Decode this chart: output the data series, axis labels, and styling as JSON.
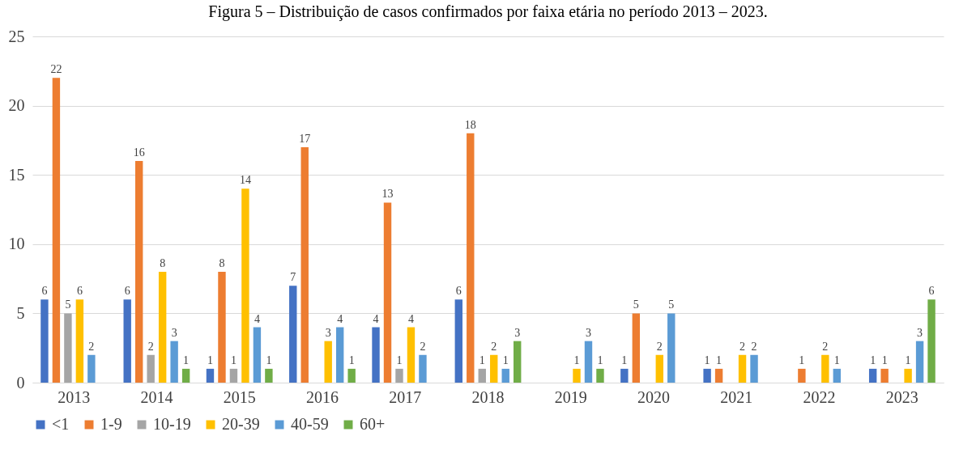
{
  "chart_data": {
    "type": "bar",
    "title": "Figura 5 – Distribuição de casos confirmados por faixa etária no período 2013 – 2023.",
    "categories": [
      "2013",
      "2014",
      "2015",
      "2016",
      "2017",
      "2018",
      "2019",
      "2020",
      "2021",
      "2022",
      "2023"
    ],
    "series": [
      {
        "name": "<1",
        "color": "#4472c4",
        "values": [
          6,
          6,
          1,
          7,
          4,
          6,
          null,
          1,
          1,
          null,
          1
        ]
      },
      {
        "name": "1-9",
        "color": "#ed7d31",
        "values": [
          22,
          16,
          8,
          17,
          13,
          18,
          null,
          5,
          1,
          1,
          1
        ]
      },
      {
        "name": "10-19",
        "color": "#a5a5a5",
        "values": [
          5,
          2,
          1,
          null,
          1,
          1,
          null,
          null,
          null,
          null,
          null
        ]
      },
      {
        "name": "20-39",
        "color": "#ffc000",
        "values": [
          6,
          8,
          14,
          3,
          4,
          2,
          1,
          2,
          2,
          2,
          1
        ]
      },
      {
        "name": "40-59",
        "color": "#5b9bd5",
        "values": [
          2,
          3,
          4,
          4,
          2,
          1,
          3,
          5,
          2,
          1,
          3
        ]
      },
      {
        "name": "60+",
        "color": "#70ad47",
        "values": [
          null,
          1,
          1,
          1,
          null,
          3,
          1,
          null,
          null,
          null,
          6
        ]
      }
    ],
    "ylim": [
      0,
      25
    ],
    "yticks": [
      0,
      5,
      10,
      15,
      20,
      25
    ],
    "grid": "y",
    "legend": "bottom",
    "data_labels": true
  }
}
